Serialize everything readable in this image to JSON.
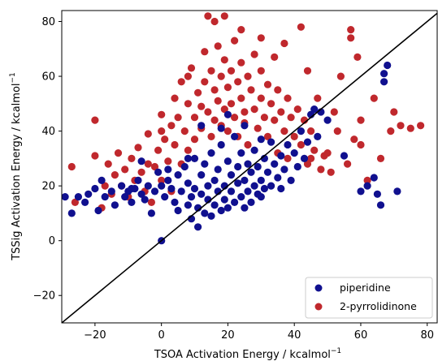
{
  "chart_data": {
    "type": "scatter",
    "title": "",
    "xlabel": "TSOA Activation Energy / kcalmol",
    "xlabel_sup": "−1",
    "ylabel": "TSSig Activation Energy / kcalmol",
    "ylabel_sup": "−1",
    "xlim": [
      -30,
      83
    ],
    "ylim": [
      -30,
      84
    ],
    "xticks": [
      -20,
      0,
      20,
      40,
      60,
      80
    ],
    "yticks": [
      -20,
      0,
      20,
      40,
      60,
      80
    ],
    "grid": false,
    "legend_position": "bottom-right",
    "reference_line": {
      "x": [
        -30,
        83
      ],
      "y": [
        -30,
        83
      ],
      "color": "#000000"
    },
    "series": [
      {
        "name": "2-pyrrolidinone",
        "color": "#c0282d",
        "points": [
          [
            -27,
            27
          ],
          [
            -26,
            14
          ],
          [
            -20,
            44
          ],
          [
            -20,
            31
          ],
          [
            -18,
            12
          ],
          [
            -17,
            20
          ],
          [
            -16,
            28
          ],
          [
            -15,
            17
          ],
          [
            -14,
            24
          ],
          [
            -13,
            32
          ],
          [
            -12,
            20
          ],
          [
            -11,
            26
          ],
          [
            -10,
            16
          ],
          [
            -9,
            30
          ],
          [
            -8,
            22
          ],
          [
            -7,
            34
          ],
          [
            -6,
            25
          ],
          [
            -5,
            18
          ],
          [
            -4,
            39
          ],
          [
            -4,
            28
          ],
          [
            -3,
            14
          ],
          [
            -2,
            27
          ],
          [
            -1,
            33
          ],
          [
            0,
            22
          ],
          [
            0,
            40
          ],
          [
            0,
            46
          ],
          [
            1,
            37
          ],
          [
            2,
            29
          ],
          [
            3,
            42
          ],
          [
            3,
            18
          ],
          [
            4,
            52
          ],
          [
            4,
            35
          ],
          [
            5,
            45
          ],
          [
            6,
            28
          ],
          [
            6,
            58
          ],
          [
            7,
            40
          ],
          [
            8,
            50
          ],
          [
            8,
            33
          ],
          [
            9,
            63
          ],
          [
            10,
            45
          ],
          [
            10,
            37
          ],
          [
            11,
            54
          ],
          [
            12,
            49
          ],
          [
            12,
            41
          ],
          [
            13,
            69
          ],
          [
            13,
            58
          ],
          [
            14,
            82
          ],
          [
            14,
            47
          ],
          [
            15,
            62
          ],
          [
            15,
            38
          ],
          [
            16,
            55
          ],
          [
            16,
            44
          ],
          [
            17,
            71
          ],
          [
            17,
            51
          ],
          [
            18,
            60
          ],
          [
            18,
            42
          ],
          [
            19,
            66
          ],
          [
            19,
            48
          ],
          [
            20,
            56
          ],
          [
            20,
            40
          ],
          [
            21,
            62
          ],
          [
            21,
            50
          ],
          [
            22,
            73
          ],
          [
            22,
            45
          ],
          [
            23,
            58
          ],
          [
            23,
            38
          ],
          [
            24,
            65
          ],
          [
            24,
            52
          ],
          [
            25,
            47
          ],
          [
            25,
            43
          ],
          [
            26,
            60
          ],
          [
            26,
            35
          ],
          [
            27,
            55
          ],
          [
            28,
            68
          ],
          [
            28,
            48
          ],
          [
            29,
            41
          ],
          [
            30,
            62
          ],
          [
            30,
            52
          ],
          [
            31,
            45
          ],
          [
            32,
            57
          ],
          [
            32,
            38
          ],
          [
            33,
            50
          ],
          [
            34,
            44
          ],
          [
            35,
            55
          ],
          [
            35,
            32
          ],
          [
            36,
            47
          ],
          [
            37,
            40
          ],
          [
            38,
            52
          ],
          [
            38,
            30
          ],
          [
            39,
            45
          ],
          [
            40,
            38
          ],
          [
            41,
            48
          ],
          [
            42,
            35
          ],
          [
            43,
            44
          ],
          [
            44,
            28
          ],
          [
            45,
            40
          ],
          [
            46,
            33
          ],
          [
            47,
            52
          ],
          [
            48,
            26
          ],
          [
            50,
            32
          ],
          [
            51,
            25
          ],
          [
            53,
            40
          ],
          [
            54,
            60
          ],
          [
            56,
            28
          ],
          [
            57,
            74
          ],
          [
            58,
            37
          ],
          [
            59,
            67
          ],
          [
            60,
            44
          ],
          [
            62,
            22
          ],
          [
            64,
            52
          ],
          [
            66,
            30
          ],
          [
            69,
            40
          ],
          [
            70,
            47
          ],
          [
            72,
            42
          ],
          [
            75,
            41
          ],
          [
            78,
            42
          ],
          [
            42,
            78
          ],
          [
            37,
            72
          ],
          [
            19,
            82
          ],
          [
            16,
            80
          ],
          [
            44,
            62
          ],
          [
            52,
            47
          ],
          [
            34,
            67
          ],
          [
            49,
            31
          ],
          [
            57,
            77
          ],
          [
            45,
            30
          ],
          [
            8,
            60
          ],
          [
            30,
            74
          ],
          [
            24,
            77
          ],
          [
            60,
            35
          ]
        ]
      },
      {
        "name": "piperidine",
        "color": "#10108f",
        "points": [
          [
            -29,
            16
          ],
          [
            -27,
            10
          ],
          [
            -25,
            16
          ],
          [
            -23,
            14
          ],
          [
            -22,
            17
          ],
          [
            -20,
            19
          ],
          [
            -19,
            11
          ],
          [
            -17,
            16
          ],
          [
            -15,
            18
          ],
          [
            -14,
            13
          ],
          [
            -12,
            20
          ],
          [
            -11,
            16
          ],
          [
            -10,
            18
          ],
          [
            -9,
            14
          ],
          [
            -8,
            19
          ],
          [
            -7,
            22
          ],
          [
            -6,
            17
          ],
          [
            -5,
            15
          ],
          [
            -4,
            20
          ],
          [
            -3,
            10
          ],
          [
            -2,
            18
          ],
          [
            -1,
            25
          ],
          [
            0,
            20
          ],
          [
            0,
            0
          ],
          [
            1,
            16
          ],
          [
            2,
            22
          ],
          [
            3,
            19
          ],
          [
            4,
            14
          ],
          [
            5,
            24
          ],
          [
            5,
            11
          ],
          [
            6,
            18
          ],
          [
            7,
            27
          ],
          [
            8,
            13
          ],
          [
            8,
            21
          ],
          [
            9,
            16
          ],
          [
            9,
            8
          ],
          [
            10,
            30
          ],
          [
            10,
            19
          ],
          [
            11,
            12
          ],
          [
            11,
            5
          ],
          [
            12,
            24
          ],
          [
            12,
            17
          ],
          [
            13,
            10
          ],
          [
            13,
            28
          ],
          [
            14,
            20
          ],
          [
            14,
            15
          ],
          [
            15,
            32
          ],
          [
            15,
            9
          ],
          [
            16,
            22
          ],
          [
            16,
            13
          ],
          [
            17,
            26
          ],
          [
            17,
            18
          ],
          [
            18,
            11
          ],
          [
            18,
            35
          ],
          [
            19,
            20
          ],
          [
            19,
            15
          ],
          [
            20,
            29
          ],
          [
            20,
            12
          ],
          [
            21,
            24
          ],
          [
            21,
            18
          ],
          [
            22,
            38
          ],
          [
            22,
            14
          ],
          [
            23,
            27
          ],
          [
            23,
            21
          ],
          [
            24,
            16
          ],
          [
            24,
            32
          ],
          [
            25,
            22
          ],
          [
            25,
            12
          ],
          [
            26,
            28
          ],
          [
            26,
            18
          ],
          [
            27,
            25
          ],
          [
            27,
            14
          ],
          [
            28,
            33
          ],
          [
            28,
            20
          ],
          [
            29,
            17
          ],
          [
            29,
            27
          ],
          [
            30,
            22
          ],
          [
            30,
            16
          ],
          [
            31,
            30
          ],
          [
            31,
            19
          ],
          [
            32,
            25
          ],
          [
            33,
            20
          ],
          [
            33,
            36
          ],
          [
            34,
            28
          ],
          [
            35,
            23
          ],
          [
            36,
            31
          ],
          [
            36,
            19
          ],
          [
            37,
            26
          ],
          [
            38,
            35
          ],
          [
            39,
            22
          ],
          [
            40,
            32
          ],
          [
            41,
            27
          ],
          [
            42,
            40
          ],
          [
            43,
            30
          ],
          [
            44,
            36
          ],
          [
            45,
            46
          ],
          [
            46,
            48
          ],
          [
            47,
            38
          ],
          [
            48,
            47
          ],
          [
            50,
            44
          ],
          [
            55,
            31
          ],
          [
            60,
            18
          ],
          [
            62,
            20
          ],
          [
            64,
            23
          ],
          [
            65,
            17
          ],
          [
            66,
            13
          ],
          [
            67,
            58
          ],
          [
            67,
            61
          ],
          [
            68,
            64
          ],
          [
            71,
            18
          ],
          [
            2,
            26
          ],
          [
            -18,
            22
          ],
          [
            12,
            42
          ],
          [
            20,
            46
          ],
          [
            25,
            42
          ],
          [
            8,
            30
          ],
          [
            18,
            41
          ],
          [
            -6,
            29
          ],
          [
            -9,
            19
          ],
          [
            30,
            37
          ]
        ]
      }
    ]
  }
}
